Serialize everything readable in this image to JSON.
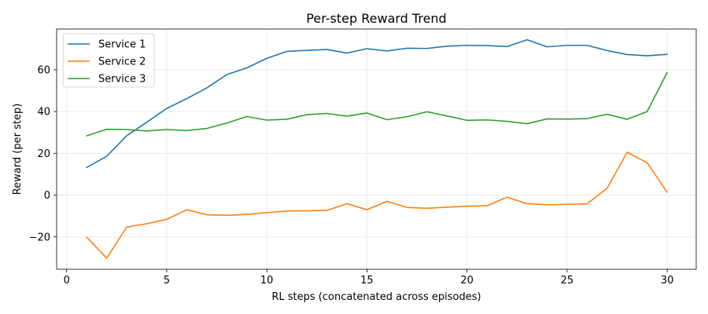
{
  "chart_data": {
    "type": "line",
    "title": "Per-step Reward Trend",
    "xlabel": "RL steps (concatenated across episodes)",
    "ylabel": "Reward (per step)",
    "xlim": [
      -0.5,
      31.45
    ],
    "ylim": [
      -35.5,
      79.5
    ],
    "xticks": [
      0,
      5,
      10,
      15,
      20,
      25,
      30
    ],
    "yticks": [
      -20,
      0,
      20,
      40,
      60
    ],
    "grid": true,
    "legend_position": "upper-left",
    "x": [
      1,
      2,
      3,
      4,
      5,
      6,
      7,
      8,
      9,
      10,
      11,
      12,
      13,
      14,
      15,
      16,
      17,
      18,
      19,
      20,
      21,
      22,
      23,
      24,
      25,
      26,
      27,
      28,
      29,
      30
    ],
    "series": [
      {
        "name": "Service 1",
        "color": "#1f77b4",
        "values": [
          13.2,
          18.6,
          28.4,
          34.9,
          41.5,
          46.2,
          51.3,
          57.7,
          60.9,
          65.5,
          68.8,
          69.3,
          69.7,
          68.0,
          70.1,
          69.0,
          70.3,
          70.2,
          71.3,
          71.7,
          71.6,
          71.1,
          74.4,
          71.0,
          71.7,
          71.7,
          69.2,
          67.3,
          66.7,
          67.4
        ]
      },
      {
        "name": "Service 2",
        "color": "#ff7f0e",
        "values": [
          -20.1,
          -30.2,
          -15.3,
          -13.7,
          -11.6,
          -7.0,
          -9.4,
          -9.7,
          -9.2,
          -8.4,
          -7.6,
          -7.5,
          -7.3,
          -4.1,
          -7.0,
          -3.0,
          -5.9,
          -6.3,
          -5.8,
          -5.3,
          -5.1,
          -1.0,
          -4.1,
          -4.6,
          -4.4,
          -4.2,
          3.3,
          20.5,
          15.5,
          1.4
        ]
      },
      {
        "name": "Service 3",
        "color": "#2ca02c",
        "values": [
          28.4,
          31.5,
          31.4,
          30.7,
          31.4,
          30.9,
          31.9,
          34.5,
          37.6,
          35.9,
          36.3,
          38.5,
          39.1,
          37.8,
          39.3,
          36.1,
          37.5,
          39.9,
          37.9,
          35.8,
          36.0,
          35.3,
          34.2,
          36.5,
          36.4,
          36.6,
          38.7,
          36.3,
          40.0,
          58.7
        ]
      }
    ]
  }
}
